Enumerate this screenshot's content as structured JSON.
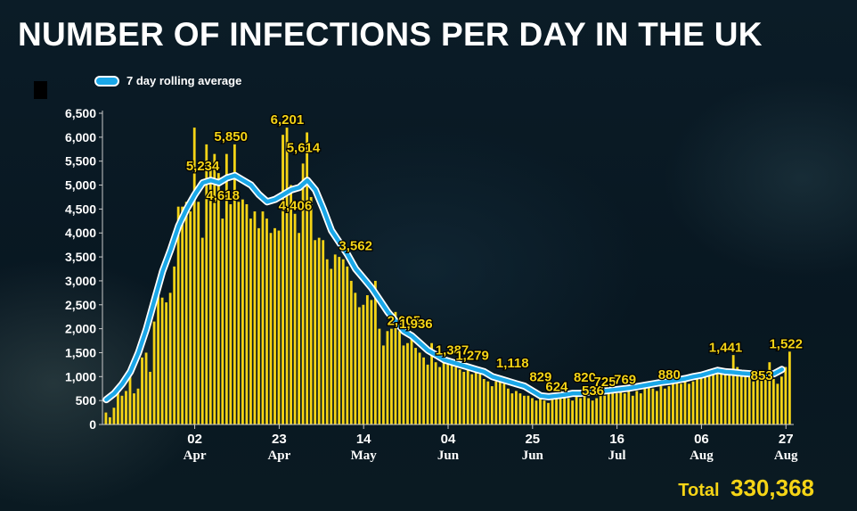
{
  "title": "NUMBER OF INFECTIONS PER DAY IN THE UK",
  "legend": {
    "label": "7 day rolling average"
  },
  "total": {
    "label": "Total",
    "value": "330,368"
  },
  "colors": {
    "bar": "#f5d416",
    "line": "#1aa7e8",
    "line_outline": "#ffffff",
    "axis_text": "#ffffff",
    "label_text": "#f5d416"
  },
  "chart_data": {
    "type": "bar",
    "title": "NUMBER OF INFECTIONS PER DAY IN THE UK",
    "ylim": [
      0,
      6500
    ],
    "yticks": [
      0,
      500,
      1000,
      1500,
      2000,
      2500,
      3000,
      3500,
      4000,
      4500,
      5000,
      5500,
      6000,
      6500
    ],
    "ytick_labels": [
      "0",
      "500",
      "1,000",
      "1,500",
      "2,000",
      "2,500",
      "3,000",
      "3,500",
      "4,000",
      "4,500",
      "5,000",
      "5,500",
      "6,000",
      "6,500"
    ],
    "xticks": [
      {
        "day": 23,
        "line1": "02",
        "line2": "Apr"
      },
      {
        "day": 44,
        "line1": "23",
        "line2": "Apr"
      },
      {
        "day": 65,
        "line1": "14",
        "line2": "May"
      },
      {
        "day": 86,
        "line1": "04",
        "line2": "Jun"
      },
      {
        "day": 107,
        "line1": "25",
        "line2": "Jun"
      },
      {
        "day": 128,
        "line1": "16",
        "line2": "Jul"
      },
      {
        "day": 149,
        "line1": "06",
        "line2": "Aug"
      },
      {
        "day": 170,
        "line1": "27",
        "line2": "Aug"
      }
    ],
    "values": [
      250,
      150,
      350,
      650,
      600,
      700,
      1050,
      650,
      750,
      1400,
      1500,
      1100,
      2150,
      2900,
      2650,
      2550,
      2750,
      3300,
      4550,
      4550,
      4650,
      4450,
      6200,
      4650,
      3900,
      5850,
      5500,
      5650,
      5250,
      4300,
      5650,
      4600,
      5850,
      4650,
      4700,
      4600,
      4300,
      4450,
      4100,
      4450,
      4300,
      4000,
      4100,
      4050,
      6050,
      6200,
      5000,
      4400,
      4000,
      5450,
      6100,
      4750,
      3850,
      3900,
      3850,
      3450,
      3250,
      3550,
      3500,
      3450,
      3300,
      3000,
      2750,
      2450,
      2500,
      2700,
      2600,
      3000,
      2000,
      1650,
      1950,
      2000,
      2350,
      1950,
      1650,
      1700,
      1900,
      1600,
      1500,
      1400,
      1250,
      1700,
      1300,
      1200,
      1450,
      1300,
      1250,
      1200,
      1150,
      1100,
      1200,
      1050,
      1100,
      1050,
      950,
      900,
      800,
      900,
      950,
      850,
      750,
      650,
      700,
      650,
      600,
      600,
      550,
      500,
      550,
      500,
      450,
      550,
      650,
      800,
      700,
      550,
      500,
      600,
      550,
      650,
      550,
      500,
      550,
      750,
      600,
      650,
      700,
      650,
      700,
      650,
      700,
      600,
      700,
      650,
      750,
      800,
      750,
      700,
      800,
      750,
      800,
      850,
      900,
      850,
      900,
      850,
      900,
      950,
      1050,
      1000,
      1150,
      1050,
      1100,
      1050,
      1100,
      1150,
      1450,
      1200,
      1100,
      1050,
      1050,
      900,
      1000,
      1050,
      1050,
      1300,
      950,
      850,
      1000,
      1200,
      1522
    ],
    "rolling_avg": [
      {
        "day": 1,
        "value": 520
      },
      {
        "day": 3,
        "value": 650
      },
      {
        "day": 5,
        "value": 850
      },
      {
        "day": 7,
        "value": 1100
      },
      {
        "day": 9,
        "value": 1500
      },
      {
        "day": 11,
        "value": 2000
      },
      {
        "day": 13,
        "value": 2600
      },
      {
        "day": 15,
        "value": 3200
      },
      {
        "day": 17,
        "value": 3650
      },
      {
        "day": 19,
        "value": 4150
      },
      {
        "day": 21,
        "value": 4500
      },
      {
        "day": 23,
        "value": 4800
      },
      {
        "day": 25,
        "value": 5050
      },
      {
        "day": 27,
        "value": 5100
      },
      {
        "day": 29,
        "value": 5050
      },
      {
        "day": 31,
        "value": 5150
      },
      {
        "day": 33,
        "value": 5200
      },
      {
        "day": 35,
        "value": 5100
      },
      {
        "day": 37,
        "value": 5000
      },
      {
        "day": 39,
        "value": 4800
      },
      {
        "day": 41,
        "value": 4650
      },
      {
        "day": 43,
        "value": 4700
      },
      {
        "day": 45,
        "value": 4800
      },
      {
        "day": 47,
        "value": 4900
      },
      {
        "day": 49,
        "value": 4950
      },
      {
        "day": 51,
        "value": 5100
      },
      {
        "day": 53,
        "value": 4900
      },
      {
        "day": 55,
        "value": 4500
      },
      {
        "day": 57,
        "value": 4050
      },
      {
        "day": 59,
        "value": 3800
      },
      {
        "day": 61,
        "value": 3550
      },
      {
        "day": 63,
        "value": 3250
      },
      {
        "day": 65,
        "value": 3050
      },
      {
        "day": 67,
        "value": 2850
      },
      {
        "day": 69,
        "value": 2600
      },
      {
        "day": 71,
        "value": 2350
      },
      {
        "day": 73,
        "value": 2150
      },
      {
        "day": 75,
        "value": 1950
      },
      {
        "day": 77,
        "value": 1850
      },
      {
        "day": 79,
        "value": 1700
      },
      {
        "day": 81,
        "value": 1550
      },
      {
        "day": 83,
        "value": 1450
      },
      {
        "day": 85,
        "value": 1350
      },
      {
        "day": 87,
        "value": 1300
      },
      {
        "day": 89,
        "value": 1250
      },
      {
        "day": 91,
        "value": 1200
      },
      {
        "day": 93,
        "value": 1150
      },
      {
        "day": 95,
        "value": 1100
      },
      {
        "day": 97,
        "value": 1000
      },
      {
        "day": 99,
        "value": 950
      },
      {
        "day": 101,
        "value": 900
      },
      {
        "day": 103,
        "value": 850
      },
      {
        "day": 105,
        "value": 800
      },
      {
        "day": 107,
        "value": 700
      },
      {
        "day": 109,
        "value": 600
      },
      {
        "day": 111,
        "value": 580
      },
      {
        "day": 113,
        "value": 600
      },
      {
        "day": 115,
        "value": 620
      },
      {
        "day": 117,
        "value": 650
      },
      {
        "day": 119,
        "value": 650
      },
      {
        "day": 121,
        "value": 680
      },
      {
        "day": 123,
        "value": 690
      },
      {
        "day": 125,
        "value": 700
      },
      {
        "day": 127,
        "value": 720
      },
      {
        "day": 129,
        "value": 740
      },
      {
        "day": 131,
        "value": 760
      },
      {
        "day": 133,
        "value": 790
      },
      {
        "day": 135,
        "value": 820
      },
      {
        "day": 137,
        "value": 850
      },
      {
        "day": 139,
        "value": 880
      },
      {
        "day": 141,
        "value": 900
      },
      {
        "day": 143,
        "value": 930
      },
      {
        "day": 145,
        "value": 960
      },
      {
        "day": 147,
        "value": 1000
      },
      {
        "day": 149,
        "value": 1030
      },
      {
        "day": 151,
        "value": 1080
      },
      {
        "day": 153,
        "value": 1130
      },
      {
        "day": 155,
        "value": 1100
      },
      {
        "day": 157,
        "value": 1090
      },
      {
        "day": 159,
        "value": 1070
      },
      {
        "day": 161,
        "value": 1060
      },
      {
        "day": 163,
        "value": 1050
      },
      {
        "day": 165,
        "value": 1040
      },
      {
        "day": 167,
        "value": 1060
      },
      {
        "day": 169,
        "value": 1150
      }
    ],
    "annotations": [
      {
        "day": 25,
        "value": 5234,
        "text": "5,234"
      },
      {
        "day": 30,
        "value": 4618,
        "text": "4,618"
      },
      {
        "day": 32,
        "value": 5850,
        "text": "5,850"
      },
      {
        "day": 46,
        "value": 6201,
        "text": "6,201"
      },
      {
        "day": 48,
        "value": 4406,
        "text": "4,406"
      },
      {
        "day": 50,
        "value": 5614,
        "text": "5,614"
      },
      {
        "day": 63,
        "value": 3562,
        "text": "3,562"
      },
      {
        "day": 75,
        "value": 2005,
        "text": "2,005"
      },
      {
        "day": 78,
        "value": 1936,
        "text": "1,936"
      },
      {
        "day": 87,
        "value": 1387,
        "text": "1,387"
      },
      {
        "day": 92,
        "value": 1279,
        "text": "1,279"
      },
      {
        "day": 102,
        "value": 1118,
        "text": "1,118"
      },
      {
        "day": 109,
        "value": 829,
        "text": "829"
      },
      {
        "day": 113,
        "value": 624,
        "text": "624"
      },
      {
        "day": 120,
        "value": 820,
        "text": "820"
      },
      {
        "day": 122,
        "value": 536,
        "text": "536"
      },
      {
        "day": 125,
        "value": 725,
        "text": "725"
      },
      {
        "day": 130,
        "value": 769,
        "text": "769"
      },
      {
        "day": 141,
        "value": 880,
        "text": "880"
      },
      {
        "day": 155,
        "value": 1441,
        "text": "1,441"
      },
      {
        "day": 164,
        "value": 853,
        "text": "853"
      },
      {
        "day": 170,
        "value": 1522,
        "text": "1,522"
      }
    ]
  }
}
